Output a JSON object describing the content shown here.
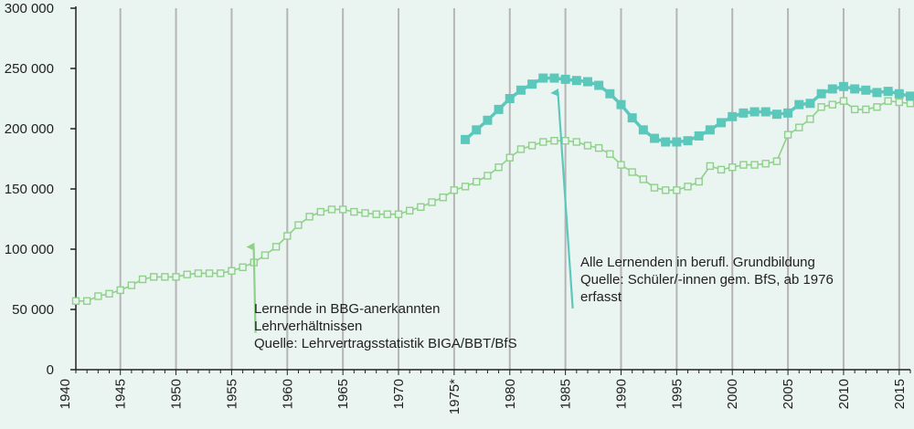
{
  "chart_data": {
    "type": "line",
    "xlim": [
      1941,
      2016
    ],
    "ylim": [
      0,
      300000
    ],
    "y_ticks": [
      0,
      50000,
      100000,
      150000,
      200000,
      250000,
      300000
    ],
    "y_tick_labels": [
      "0",
      "50 000",
      "100 000",
      "150 000",
      "200 000",
      "250 000",
      "300 000"
    ],
    "x_ticks": [
      1940,
      1945,
      1950,
      1955,
      1960,
      1965,
      1970,
      1975,
      1980,
      1985,
      1990,
      1995,
      2000,
      2005,
      2010,
      2015
    ],
    "x_tick_labels": [
      "1940",
      "1945",
      "1950",
      "1955",
      "1960",
      "1965",
      "1970",
      "1975*",
      "1980",
      "1985",
      "1990",
      "1995",
      "2000",
      "2005",
      "2010",
      "2015"
    ],
    "grid": "vertical",
    "colors": {
      "background": "#eaf4f0",
      "lernende_bbg": "#8fd18a",
      "alle_lernenden": "#5cc8bc",
      "arrow_bbg": "#8fd18a",
      "arrow_alle": "#5cc8bc",
      "grid": "#b5b5b5",
      "axis": "#222222"
    },
    "series": [
      {
        "key": "lernende_bbg",
        "marker": "hollow-square",
        "x": [
          1941,
          1942,
          1943,
          1944,
          1945,
          1946,
          1947,
          1948,
          1949,
          1950,
          1951,
          1952,
          1953,
          1954,
          1955,
          1956,
          1957,
          1958,
          1959,
          1960,
          1961,
          1962,
          1963,
          1964,
          1965,
          1966,
          1967,
          1968,
          1969,
          1970,
          1971,
          1972,
          1973,
          1974,
          1975,
          1976,
          1977,
          1978,
          1979,
          1980,
          1981,
          1982,
          1983,
          1984,
          1985,
          1986,
          1987,
          1988,
          1989,
          1990,
          1991,
          1992,
          1993,
          1994,
          1995,
          1996,
          1997,
          1998,
          1999,
          2000,
          2001,
          2002,
          2003,
          2004,
          2005,
          2006,
          2007,
          2008,
          2009,
          2010,
          2011,
          2012,
          2013,
          2014,
          2015,
          2016
        ],
        "y": [
          57000,
          57000,
          61000,
          63000,
          66000,
          70000,
          75000,
          77000,
          77000,
          77000,
          79000,
          80000,
          80000,
          80000,
          82000,
          85000,
          89000,
          95000,
          102000,
          111000,
          120000,
          127000,
          131000,
          133000,
          133000,
          131000,
          130000,
          129000,
          129000,
          129000,
          132000,
          135000,
          139000,
          143000,
          149000,
          152000,
          156000,
          161000,
          168000,
          176000,
          183000,
          186000,
          189000,
          190000,
          190000,
          189000,
          186000,
          184000,
          179000,
          170000,
          164000,
          158000,
          151000,
          149000,
          149000,
          152000,
          156000,
          169000,
          166000,
          168000,
          170000,
          170000,
          171000,
          173000,
          195000,
          201000,
          208000,
          218000,
          220000,
          223000,
          216000,
          216000,
          218000,
          223000,
          222000,
          221000
        ]
      },
      {
        "key": "alle_lernenden",
        "marker": "filled-square",
        "x": [
          1976,
          1977,
          1978,
          1979,
          1980,
          1981,
          1982,
          1983,
          1984,
          1985,
          1986,
          1987,
          1988,
          1989,
          1990,
          1991,
          1992,
          1993,
          1994,
          1995,
          1996,
          1997,
          1998,
          1999,
          2000,
          2001,
          2002,
          2003,
          2004,
          2005,
          2006,
          2007,
          2008,
          2009,
          2010,
          2011,
          2012,
          2013,
          2014,
          2015,
          2016
        ],
        "y": [
          191000,
          199000,
          207000,
          216000,
          225000,
          232000,
          237000,
          242000,
          242000,
          241000,
          240000,
          239000,
          236000,
          229000,
          220000,
          209000,
          199000,
          192000,
          189000,
          189000,
          190000,
          194000,
          199000,
          205000,
          210000,
          213000,
          214000,
          214000,
          212000,
          213000,
          220000,
          221000,
          229000,
          233000,
          235000,
          233000,
          232000,
          230000,
          231000,
          229000,
          227000
        ]
      }
    ],
    "annotations": [
      {
        "key": "bbg",
        "lines": [
          "Lernende in BBG-anerkannten",
          "Lehrverhältnissen",
          "Quelle: Lehrvertragsstatistik BIGA/BBT/BfS"
        ],
        "arrow_from": [
          1956,
          73000
        ],
        "arrow_to": [
          1956,
          102000
        ]
      },
      {
        "key": "alle",
        "lines": [
          "Alle Lernenden in berufl. Grundbildung",
          "Quelle: Schüler/-innen gem. BfS, ab 1976",
          "erfasst"
        ],
        "arrow_from": [
          1985,
          72000
        ],
        "arrow_to": [
          1984,
          230000
        ]
      }
    ]
  }
}
